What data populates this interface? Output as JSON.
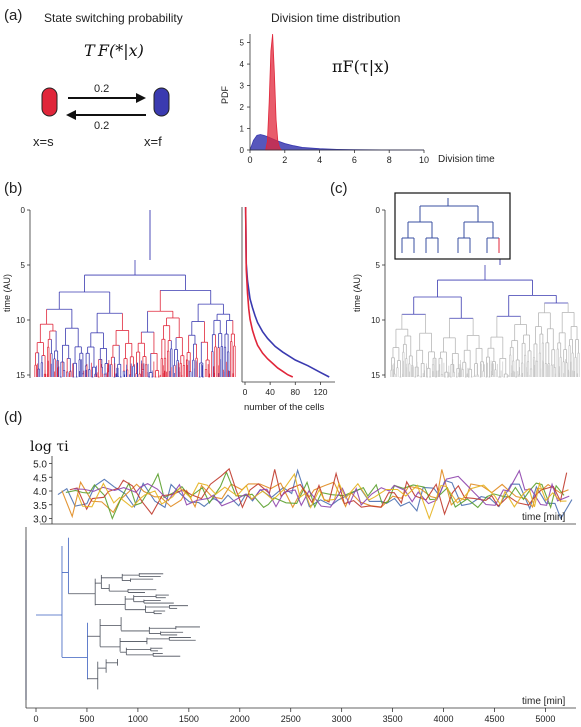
{
  "panel_labels": {
    "a": "(a)",
    "b": "(b)",
    "c": "(c)",
    "d": "(d)"
  },
  "panel_a": {
    "left_title": "State switching probability",
    "right_title": "Division time distribution",
    "switch_formula": "T F(*|x)",
    "pi_formula": "πF(τ|x)",
    "rate_top": "0.2",
    "rate_bottom": "0.2",
    "state_s_label": "x=s",
    "state_f_label": "x=f",
    "colors": {
      "slow": "#e0263a",
      "fast": "#3a3ab0"
    }
  },
  "chart_data": [
    {
      "type": "area",
      "title": "Division time distribution",
      "xlabel": "Division time",
      "ylabel": "PDF",
      "xlim": [
        0,
        10
      ],
      "ylim": [
        0,
        5.4
      ],
      "x_ticks": [
        "0",
        "2",
        "4",
        "6",
        "8",
        "10"
      ],
      "y_ticks": [
        "0",
        "1",
        "2",
        "3",
        "4",
        "5"
      ],
      "series": [
        {
          "color": "#e0263a",
          "x": [
            0.9,
            1.0,
            1.1,
            1.2,
            1.3,
            1.4,
            1.5,
            1.6,
            1.7,
            1.8
          ],
          "y": [
            0.0,
            0.4,
            2.2,
            4.6,
            5.4,
            3.6,
            1.4,
            0.4,
            0.1,
            0.0
          ]
        },
        {
          "color": "#3a3ab0",
          "x": [
            0.0,
            0.2,
            0.4,
            0.6,
            0.8,
            1.0,
            1.5,
            2.0,
            2.5,
            3.0,
            4.0,
            5.0,
            6.0,
            8.0,
            10.0
          ],
          "y": [
            0.0,
            0.45,
            0.68,
            0.72,
            0.68,
            0.62,
            0.45,
            0.3,
            0.2,
            0.12,
            0.06,
            0.03,
            0.015,
            0.004,
            0.0
          ]
        }
      ]
    },
    {
      "type": "line",
      "xlabel": "number of the cells",
      "x_ticks": [
        "0",
        "40",
        "80",
        "120"
      ],
      "xlim": [
        0,
        140
      ],
      "ylim": [
        0,
        15
      ],
      "series": [
        {
          "color": "#3a3ab0",
          "x": [
            1,
            2,
            4,
            8,
            12,
            16,
            20,
            28,
            36,
            48,
            60,
            80,
            100,
            120,
            134
          ],
          "y": [
            0,
            5,
            6.5,
            8.1,
            8.9,
            9.6,
            10.2,
            11.0,
            11.6,
            12.3,
            12.8,
            13.5,
            14.0,
            14.6,
            15.0
          ]
        },
        {
          "color": "#e0263a",
          "x": [
            1,
            2,
            4,
            6,
            8,
            12,
            16,
            20,
            28,
            36,
            44,
            52,
            60,
            68,
            76
          ],
          "y": [
            0,
            5.5,
            7.6,
            9.0,
            9.9,
            10.9,
            11.6,
            12.2,
            12.9,
            13.4,
            13.8,
            14.2,
            14.5,
            14.8,
            15.0
          ]
        }
      ]
    },
    {
      "type": "line",
      "ylabel": "log τi",
      "xlabel": "time [min]",
      "y_ticks": [
        "5.0",
        "4.5",
        "4.0",
        "3.5",
        "3.0"
      ],
      "ylim": [
        2.8,
        5.2
      ],
      "xlim": [
        0,
        5300
      ],
      "series": [
        {
          "color": "#4a6fb0"
        },
        {
          "color": "#e08a1e"
        },
        {
          "color": "#5aa02c"
        },
        {
          "color": "#c0382b"
        },
        {
          "color": "#8e44ad"
        },
        {
          "color": "#e6b31e"
        }
      ]
    },
    {
      "type": "line",
      "xlabel": "time [min]",
      "x_ticks": [
        "0",
        "500",
        "1000",
        "1500",
        "2000",
        "2500",
        "3000",
        "3500",
        "4000",
        "4500",
        "5000"
      ],
      "xlim": [
        0,
        5300
      ]
    }
  ],
  "tree_b": {
    "ylabel": "time (AU)",
    "y_ticks": [
      "0",
      "5",
      "10",
      "15"
    ]
  },
  "tree_c": {
    "ylabel": "time (AU)",
    "y_ticks": [
      "0",
      "5",
      "10",
      "15"
    ]
  }
}
